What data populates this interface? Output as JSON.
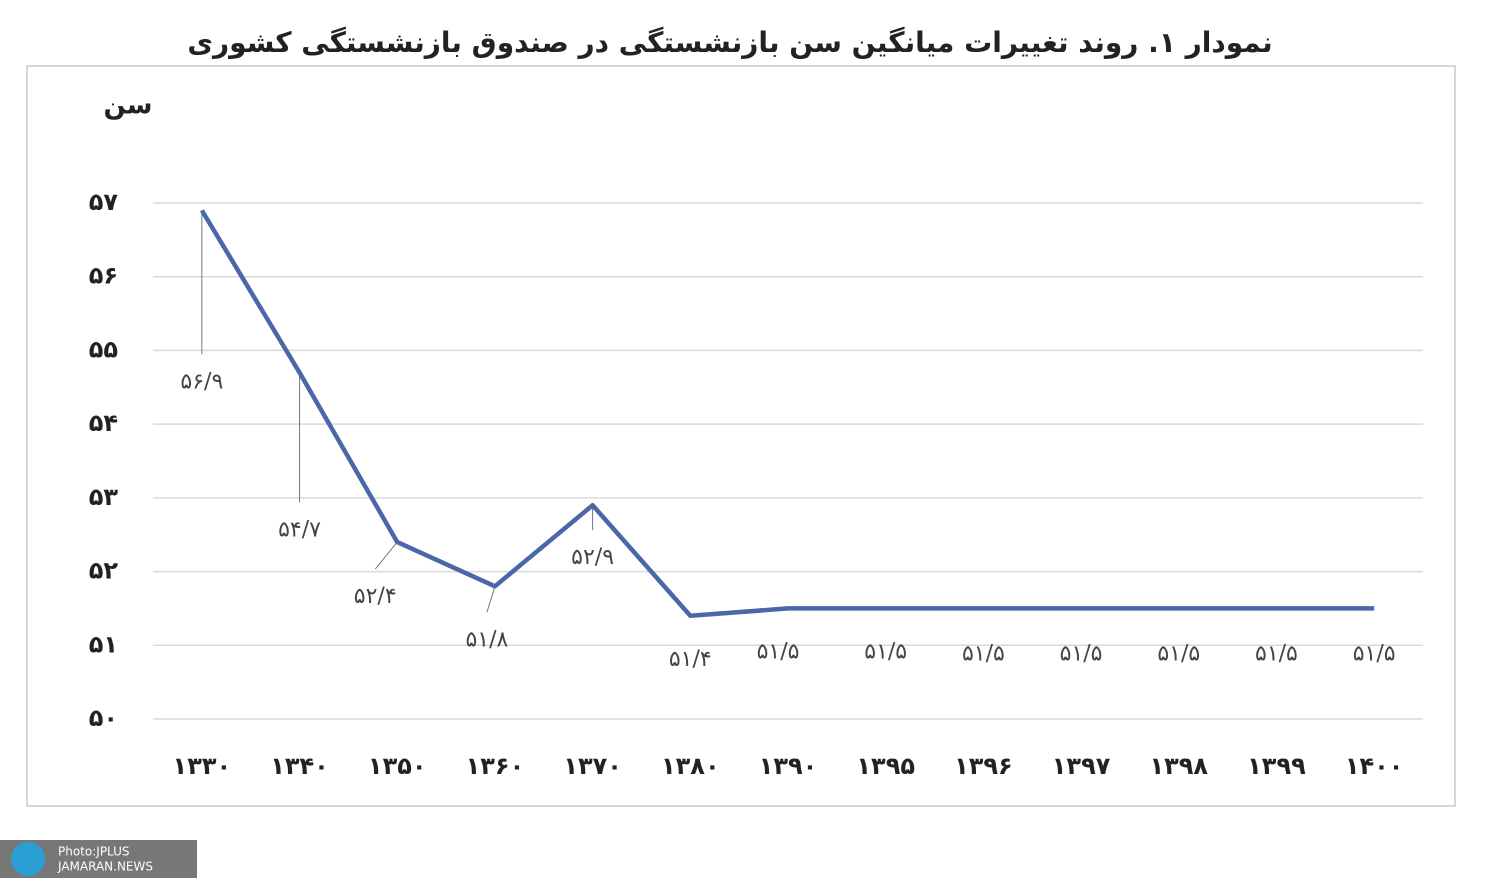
{
  "chart_data": {
    "type": "line",
    "title": "نمودار ۱. روند تغییرات میانگین سن بازنشستگی در صندوق بازنشستگی کشوری",
    "y_label": "سن",
    "categories": [
      "۱۳۳۰",
      "۱۳۴۰",
      "۱۳۵۰",
      "۱۳۶۰",
      "۱۳۷۰",
      "۱۳۸۰",
      "۱۳۹۰",
      "۱۳۹۵",
      "۱۳۹۶",
      "۱۳۹۷",
      "۱۳۹۸",
      "۱۳۹۹",
      "۱۴۰۰"
    ],
    "values": [
      56.9,
      54.7,
      52.4,
      51.8,
      52.9,
      51.4,
      51.5,
      51.5,
      51.5,
      51.5,
      51.5,
      51.5,
      51.5
    ],
    "value_labels": [
      "۵۶/۹",
      "۵۴/۷",
      "۵۲/۴",
      "۵۱/۸",
      "۵۲/۹",
      "۵۱/۴",
      "۵۱/۵",
      "۵۱/۵",
      "۵۱/۵",
      "۵۱/۵",
      "۵۱/۵",
      "۵۱/۵",
      "۵۱/۵"
    ],
    "color": "#4a68a8",
    "ylim": [
      50,
      57
    ],
    "yticks": [
      {
        "value": 50,
        "label": "۵۰"
      },
      {
        "value": 51,
        "label": "۵۱"
      },
      {
        "value": 52,
        "label": "۵۲"
      },
      {
        "value": 53,
        "label": "۵۳"
      },
      {
        "value": 54,
        "label": "۵۴"
      },
      {
        "value": 55,
        "label": "۵۵"
      },
      {
        "value": 56,
        "label": "۵۶"
      },
      {
        "value": 57,
        "label": "۵۷"
      }
    ],
    "grid": true
  },
  "watermark": [
    "Photo:JPLUS",
    "JAMARAN.NEWS"
  ]
}
